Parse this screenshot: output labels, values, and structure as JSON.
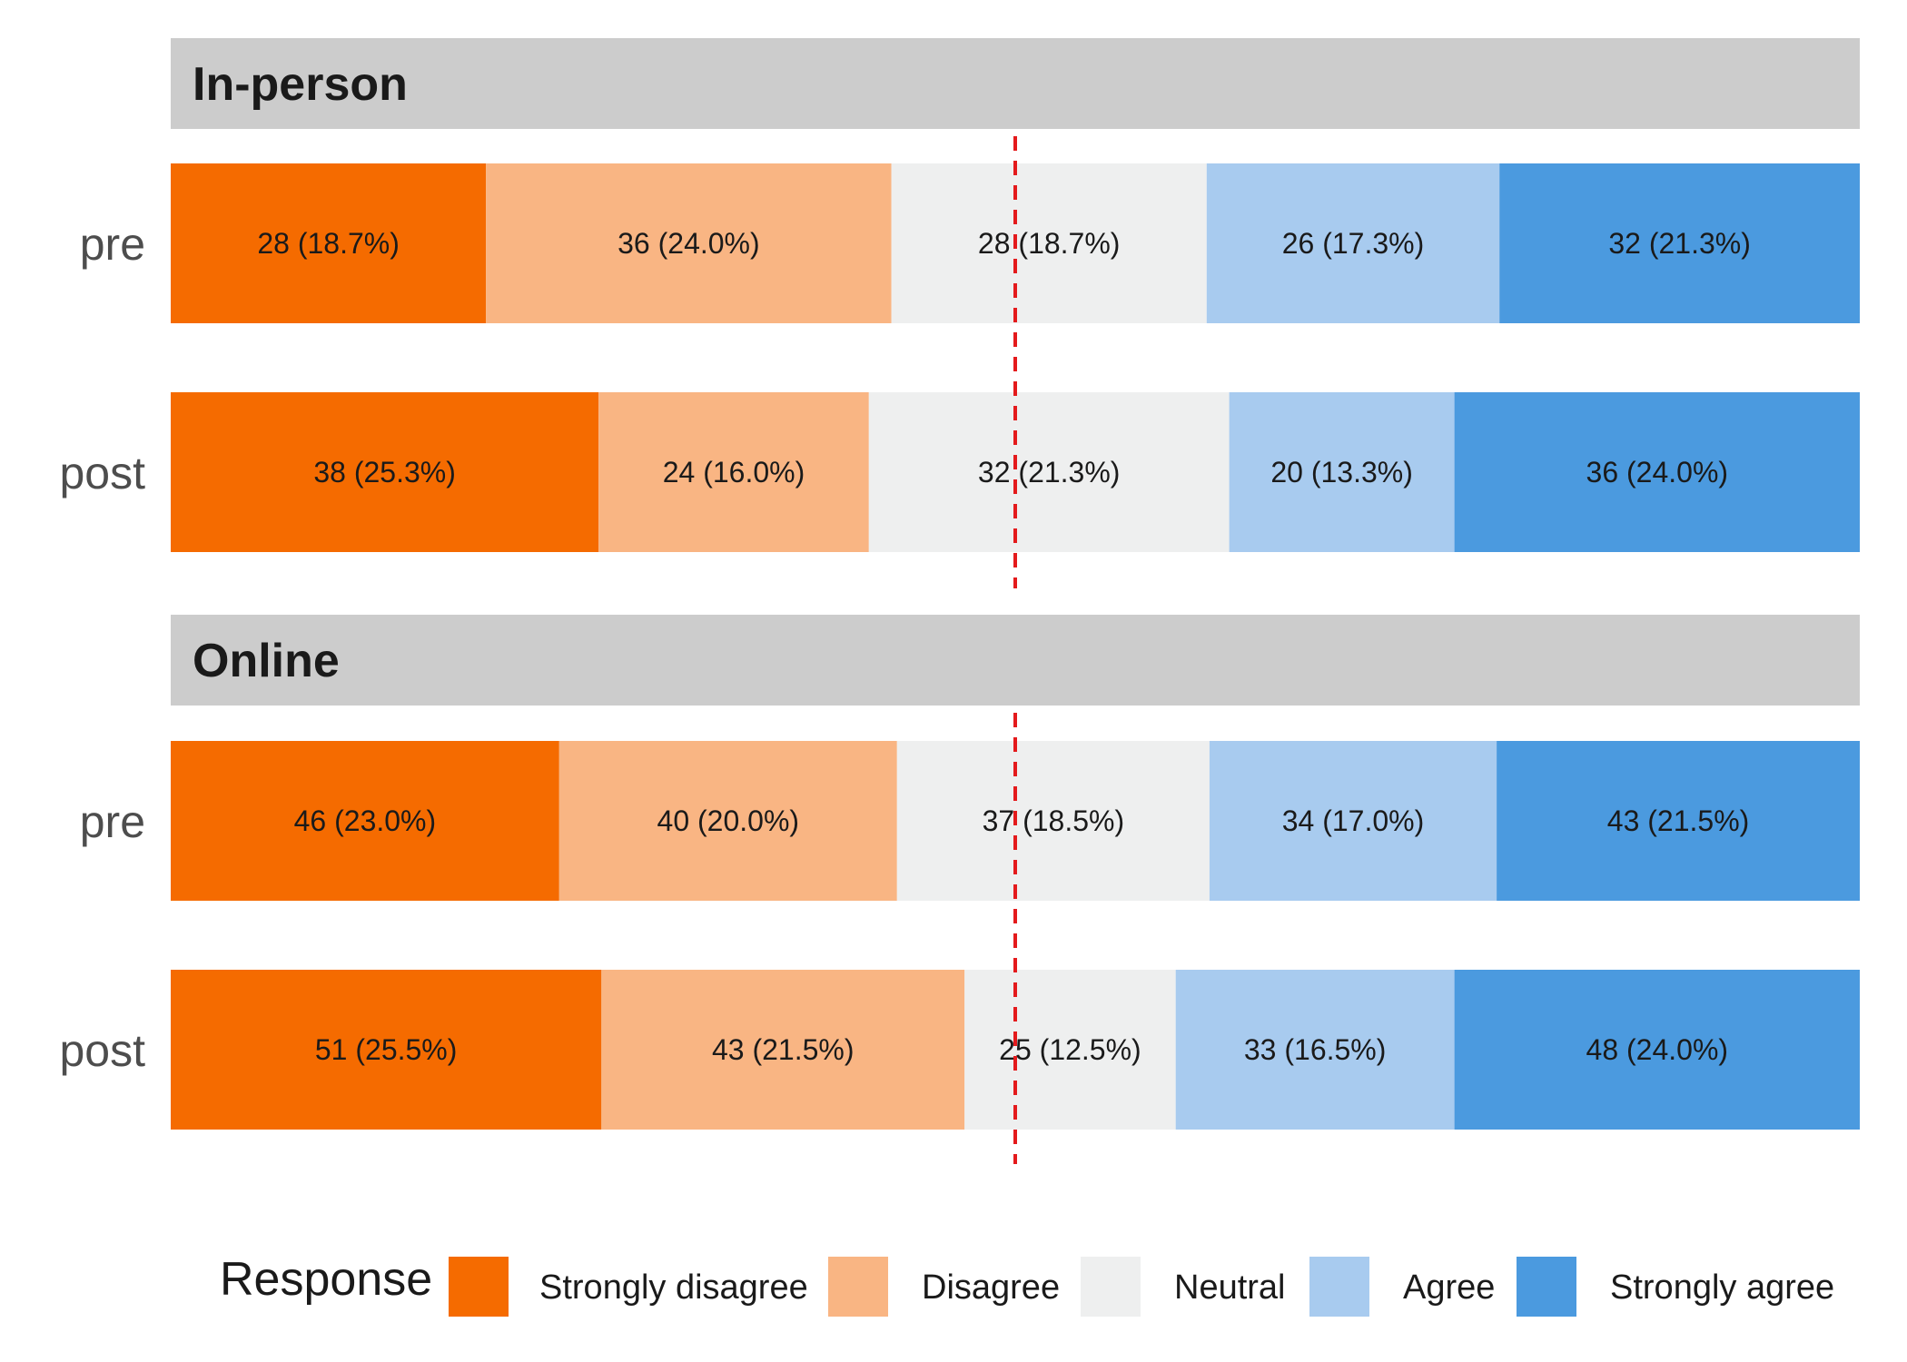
{
  "chart_data": {
    "type": "bar",
    "orientation": "horizontal",
    "stacked": "percent",
    "facets": [
      {
        "name": "In-person",
        "rows": [
          {
            "label": "pre",
            "counts": [
              28,
              36,
              28,
              26,
              32
            ],
            "labels": [
              "28 (18.7%)",
              "36 (24.0%)",
              "28 (18.7%)",
              "26 (17.3%)",
              "32 (21.3%)"
            ]
          },
          {
            "label": "post",
            "counts": [
              38,
              24,
              32,
              20,
              36
            ],
            "labels": [
              "38 (25.3%)",
              "24 (16.0%)",
              "32 (21.3%)",
              "20 (13.3%)",
              "36 (24.0%)"
            ]
          }
        ]
      },
      {
        "name": "Online",
        "rows": [
          {
            "label": "pre",
            "counts": [
              46,
              40,
              37,
              34,
              43
            ],
            "labels": [
              "46 (23.0%)",
              "40 (20.0%)",
              "37 (18.5%)",
              "34 (17.0%)",
              "43 (21.5%)"
            ]
          },
          {
            "label": "post",
            "counts": [
              51,
              43,
              25,
              33,
              48
            ],
            "labels": [
              "51 (25.5%)",
              "43 (21.5%)",
              "25 (12.5%)",
              "33 (16.5%)",
              "48 (24.0%)"
            ]
          }
        ]
      }
    ],
    "categories": [
      "Strongly disagree",
      "Disagree",
      "Neutral",
      "Agree",
      "Strongly agree"
    ],
    "colors": [
      "#f56b00",
      "#f9b583",
      "#eeefef",
      "#a8cbef",
      "#4b9adf"
    ],
    "reference_line": {
      "x_percent": 50,
      "color": "#e41a1c",
      "style": "dashed"
    },
    "legend": {
      "title": "Response",
      "position": "bottom"
    }
  }
}
